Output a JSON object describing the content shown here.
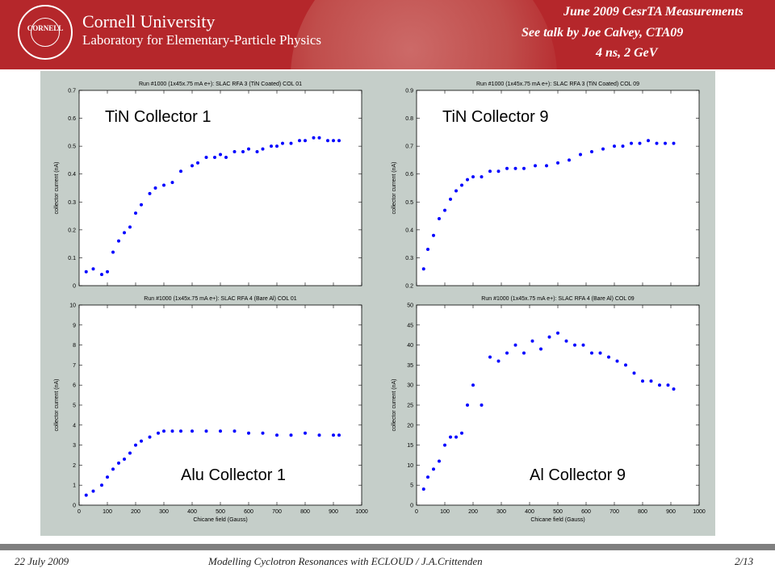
{
  "header": {
    "seal_text": "CORNELL",
    "university": "Cornell University",
    "lab": "Laboratory for Elementary-Particle Physics",
    "title_line1": "June 2009 CesrTA Measurements",
    "title_line2": "See talk by Joe Calvey, CTA09",
    "title_line3": "4 ns, 2 GeV",
    "accent": "#b5272b"
  },
  "footer": {
    "date": "22 July 2009",
    "center": "Modelling Cyclotron Resonances with ECLOUD / J.A.Crittenden",
    "page": "2/13"
  },
  "chart_data": [
    {
      "type": "scatter",
      "title": "Run #1000 (1x45x.75 mA e+):   SLAC RFA 3 (TiN Coated)  COL 01",
      "label": "TiN Collector 1",
      "xlabel": "",
      "ylabel": "collector current (nA)",
      "xlim": [
        0,
        1000
      ],
      "ylim": [
        0,
        0.7
      ],
      "xticks": [],
      "yticks": [
        "0",
        "0.1",
        "0.2",
        "0.3",
        "0.4",
        "0.5",
        "0.6",
        "0.7"
      ],
      "color": "#0000ff",
      "series": [
        {
          "x": [
            25,
            50,
            80,
            100,
            120,
            140,
            160,
            180,
            200,
            220,
            250,
            270,
            300,
            330,
            360,
            400,
            420,
            450,
            480,
            500,
            520,
            550,
            580,
            600,
            630,
            650,
            680,
            700,
            720,
            750,
            780,
            800,
            830,
            850,
            880,
            900,
            920
          ],
          "y": [
            0.05,
            0.06,
            0.04,
            0.05,
            0.12,
            0.16,
            0.19,
            0.21,
            0.26,
            0.29,
            0.33,
            0.35,
            0.36,
            0.37,
            0.41,
            0.43,
            0.44,
            0.46,
            0.46,
            0.47,
            0.46,
            0.48,
            0.48,
            0.49,
            0.48,
            0.49,
            0.5,
            0.5,
            0.51,
            0.51,
            0.52,
            0.52,
            0.53,
            0.53,
            0.52,
            0.52,
            0.52
          ]
        }
      ]
    },
    {
      "type": "scatter",
      "title": "Run #1000 (1x45x.75 mA e+):   SLAC RFA 3 (TiN Coated)  COL 09",
      "label": "TiN Collector 9",
      "xlabel": "",
      "ylabel": "collector current (nA)",
      "xlim": [
        0,
        1000
      ],
      "ylim": [
        0.2,
        0.9
      ],
      "xticks": [],
      "yticks": [
        "0.2",
        "0.3",
        "0.4",
        "0.5",
        "0.6",
        "0.7",
        "0.8",
        "0.9"
      ],
      "color": "#0000ff",
      "series": [
        {
          "x": [
            25,
            40,
            60,
            80,
            100,
            120,
            140,
            160,
            180,
            200,
            230,
            260,
            290,
            320,
            350,
            380,
            420,
            460,
            500,
            540,
            580,
            620,
            660,
            700,
            730,
            760,
            790,
            820,
            850,
            880,
            910
          ],
          "y": [
            0.26,
            0.33,
            0.38,
            0.44,
            0.47,
            0.51,
            0.54,
            0.56,
            0.58,
            0.59,
            0.59,
            0.61,
            0.61,
            0.62,
            0.62,
            0.62,
            0.63,
            0.63,
            0.64,
            0.65,
            0.67,
            0.68,
            0.69,
            0.7,
            0.7,
            0.71,
            0.71,
            0.72,
            0.71,
            0.71,
            0.71
          ]
        }
      ]
    },
    {
      "type": "scatter",
      "title": "Run #1000 (1x45x.75 mA e+):   SLAC RFA 4 (Bare Al)  COL 01",
      "label": "Alu Collector 1",
      "xlabel": "Chicane field (Gauss)",
      "ylabel": "collector current (nA)",
      "xlim": [
        0,
        1000
      ],
      "ylim": [
        0,
        10
      ],
      "xticks": [
        "0",
        "100",
        "200",
        "300",
        "400",
        "500",
        "600",
        "700",
        "800",
        "900",
        "1000"
      ],
      "yticks": [
        "0",
        "1",
        "2",
        "3",
        "4",
        "5",
        "6",
        "7",
        "8",
        "9",
        "10"
      ],
      "color": "#0000ff",
      "series": [
        {
          "x": [
            25,
            50,
            80,
            100,
            120,
            140,
            160,
            180,
            200,
            220,
            250,
            280,
            300,
            330,
            360,
            400,
            450,
            500,
            550,
            600,
            650,
            700,
            750,
            800,
            850,
            900,
            920
          ],
          "y": [
            0.5,
            0.7,
            1.0,
            1.4,
            1.8,
            2.1,
            2.3,
            2.6,
            3.0,
            3.2,
            3.4,
            3.6,
            3.7,
            3.7,
            3.7,
            3.7,
            3.7,
            3.7,
            3.7,
            3.6,
            3.6,
            3.5,
            3.5,
            3.6,
            3.5,
            3.5,
            3.5
          ]
        }
      ]
    },
    {
      "type": "scatter",
      "title": "Run #1000 (1x45x.75 mA e+):   SLAC RFA 4 (Bare Al)  COL 09",
      "label": "Al Collector 9",
      "xlabel": "Chicane field (Gauss)",
      "ylabel": "collector current (nA)",
      "xlim": [
        0,
        1000
      ],
      "ylim": [
        0,
        50
      ],
      "xticks": [
        "0",
        "100",
        "200",
        "300",
        "400",
        "500",
        "600",
        "700",
        "800",
        "900",
        "1000"
      ],
      "yticks": [
        "0",
        "5",
        "10",
        "15",
        "20",
        "25",
        "30",
        "35",
        "40",
        "45",
        "50"
      ],
      "color": "#0000ff",
      "series": [
        {
          "x": [
            25,
            40,
            60,
            80,
            100,
            120,
            140,
            160,
            180,
            200,
            230,
            260,
            290,
            320,
            350,
            380,
            410,
            440,
            470,
            500,
            530,
            560,
            590,
            620,
            650,
            680,
            710,
            740,
            770,
            800,
            830,
            860,
            890,
            910
          ],
          "y": [
            4,
            7,
            9,
            11,
            15,
            17,
            17,
            18,
            25,
            30,
            25,
            37,
            36,
            38,
            40,
            38,
            41,
            39,
            42,
            43,
            41,
            40,
            40,
            38,
            38,
            37,
            36,
            35,
            33,
            31,
            31,
            30,
            30,
            29
          ]
        }
      ]
    }
  ]
}
